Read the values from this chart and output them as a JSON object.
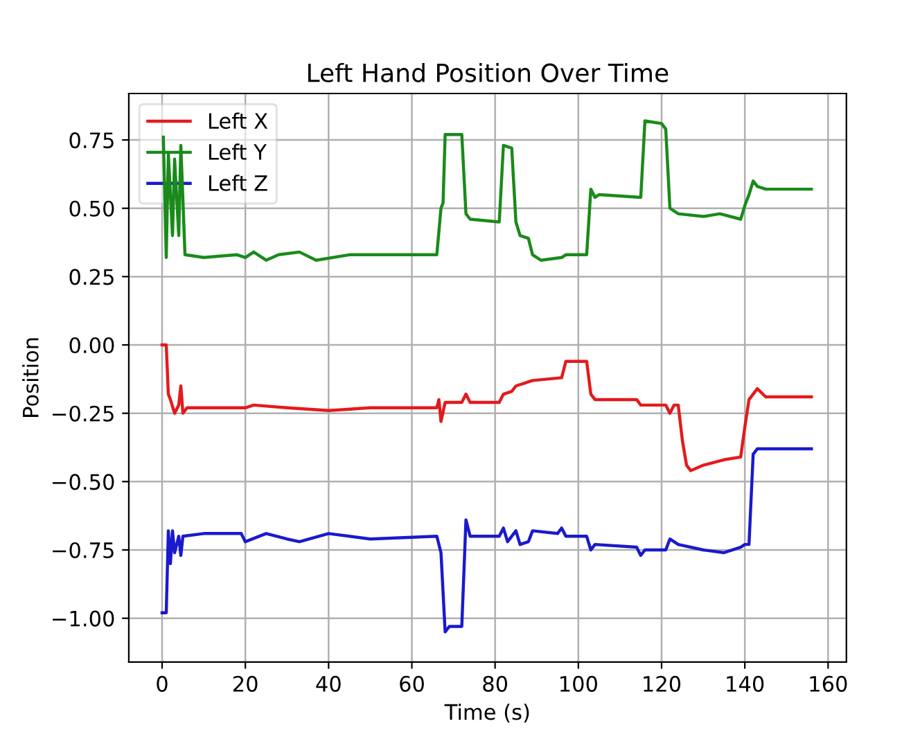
{
  "chart_data": {
    "type": "line",
    "title": "Left Hand Position Over Time",
    "xlabel": "Time (s)",
    "ylabel": "Position",
    "xlim": [
      -8,
      164.4
    ],
    "ylim": [
      -1.16,
      0.92
    ],
    "xticks": [
      0,
      20,
      40,
      60,
      80,
      100,
      120,
      140,
      160
    ],
    "yticks": [
      {
        "value": -1.0,
        "label": "−1.00"
      },
      {
        "value": -0.75,
        "label": "−0.75"
      },
      {
        "value": -0.5,
        "label": "−0.50"
      },
      {
        "value": -0.25,
        "label": "−0.25"
      },
      {
        "value": 0,
        "label": "0.00"
      },
      {
        "value": 0.25,
        "label": "0.25"
      },
      {
        "value": 0.5,
        "label": "0.50"
      },
      {
        "value": 0.75,
        "label": "0.75"
      }
    ],
    "grid": true,
    "legend": "top left",
    "series": [
      {
        "name": "Left X",
        "color": "#e41a1c",
        "x": [
          0,
          1,
          1.5,
          2,
          3,
          4,
          4.5,
          5,
          6,
          20,
          22,
          30,
          40,
          50,
          66,
          66.5,
          67,
          68,
          72,
          73,
          74,
          81,
          82,
          84,
          85,
          87,
          89,
          96,
          97,
          102,
          103,
          104,
          114,
          115,
          121,
          122,
          123,
          124,
          125,
          126,
          127,
          130,
          135,
          139,
          140,
          141,
          142,
          143,
          145,
          156
        ],
        "values": [
          0.0,
          0.0,
          -0.18,
          -0.2,
          -0.25,
          -0.22,
          -0.15,
          -0.25,
          -0.23,
          -0.23,
          -0.22,
          -0.23,
          -0.24,
          -0.23,
          -0.23,
          -0.2,
          -0.28,
          -0.21,
          -0.21,
          -0.18,
          -0.21,
          -0.21,
          -0.18,
          -0.17,
          -0.15,
          -0.14,
          -0.13,
          -0.12,
          -0.06,
          -0.06,
          -0.18,
          -0.2,
          -0.2,
          -0.22,
          -0.22,
          -0.25,
          -0.22,
          -0.22,
          -0.35,
          -0.44,
          -0.46,
          -0.44,
          -0.42,
          -0.41,
          -0.3,
          -0.2,
          -0.18,
          -0.16,
          -0.19,
          -0.19
        ]
      },
      {
        "name": "Left Y",
        "color": "#1a8a1a",
        "x": [
          0.3,
          1,
          1.5,
          2.5,
          3,
          4,
          4.5,
          5.5,
          10,
          18,
          20,
          22,
          25,
          28,
          33,
          37,
          45,
          55,
          66,
          67,
          67.5,
          68,
          72,
          73,
          74,
          81,
          82,
          84,
          85,
          86,
          88,
          89,
          91,
          96,
          97,
          102,
          103,
          104,
          105,
          115,
          116,
          120,
          121,
          122,
          124,
          130,
          134,
          139,
          140,
          141,
          142,
          143,
          145,
          156
        ],
        "values": [
          0.76,
          0.32,
          0.7,
          0.4,
          0.68,
          0.4,
          0.73,
          0.33,
          0.32,
          0.33,
          0.32,
          0.34,
          0.31,
          0.33,
          0.34,
          0.31,
          0.33,
          0.33,
          0.33,
          0.5,
          0.52,
          0.77,
          0.77,
          0.48,
          0.46,
          0.45,
          0.73,
          0.72,
          0.45,
          0.4,
          0.39,
          0.33,
          0.31,
          0.32,
          0.33,
          0.33,
          0.57,
          0.54,
          0.55,
          0.54,
          0.82,
          0.81,
          0.79,
          0.5,
          0.48,
          0.47,
          0.48,
          0.46,
          0.51,
          0.55,
          0.6,
          0.58,
          0.57,
          0.57
        ]
      },
      {
        "name": "Left Z",
        "color": "#1a1acc",
        "x": [
          0,
          1,
          1.5,
          2,
          2.5,
          3,
          4,
          4.5,
          5,
          10,
          19,
          20,
          25,
          30,
          33,
          40,
          50,
          66,
          67,
          68,
          69,
          72,
          73,
          74,
          81,
          82,
          83,
          85,
          86,
          88,
          89,
          95,
          96,
          97,
          102,
          103,
          104,
          114,
          115,
          116,
          121,
          122,
          124,
          130,
          135,
          139,
          140,
          141,
          142,
          143,
          156
        ],
        "values": [
          -0.98,
          -0.98,
          -0.68,
          -0.8,
          -0.68,
          -0.76,
          -0.7,
          -0.77,
          -0.7,
          -0.69,
          -0.69,
          -0.72,
          -0.69,
          -0.71,
          -0.72,
          -0.69,
          -0.71,
          -0.7,
          -0.76,
          -1.05,
          -1.03,
          -1.03,
          -0.64,
          -0.7,
          -0.7,
          -0.67,
          -0.72,
          -0.68,
          -0.73,
          -0.72,
          -0.68,
          -0.69,
          -0.67,
          -0.7,
          -0.7,
          -0.75,
          -0.73,
          -0.74,
          -0.77,
          -0.75,
          -0.75,
          -0.71,
          -0.73,
          -0.75,
          -0.76,
          -0.74,
          -0.73,
          -0.73,
          -0.4,
          -0.38,
          -0.38
        ]
      }
    ]
  }
}
